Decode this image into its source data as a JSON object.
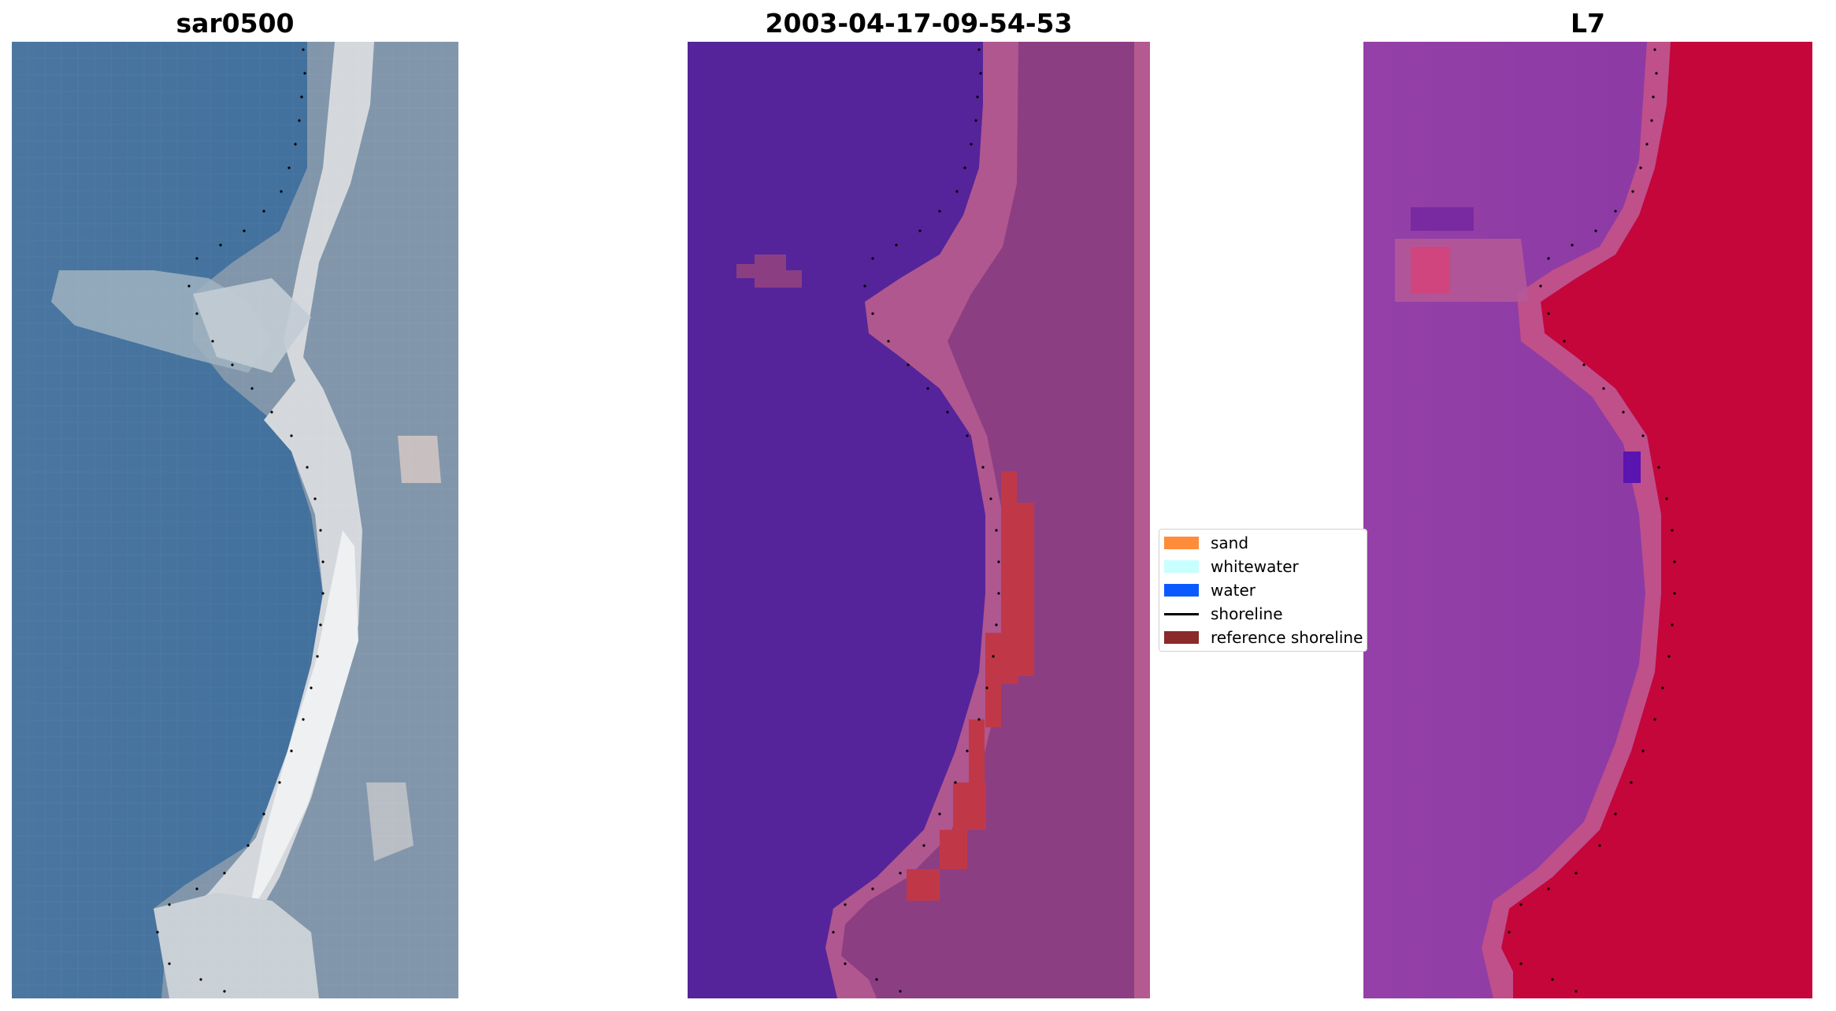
{
  "titles": {
    "left": "sar0500",
    "center": "2003-04-17-09-54-53",
    "right": "L7"
  },
  "legend": {
    "items": [
      {
        "label": "sand",
        "color": "#ff8c3a",
        "kind": "patch"
      },
      {
        "label": "whitewater",
        "color": "#c8ffff",
        "kind": "patch"
      },
      {
        "label": "water",
        "color": "#0a5aff",
        "kind": "patch"
      },
      {
        "label": "shoreline",
        "color": "#000000",
        "kind": "line"
      },
      {
        "label": "reference shoreline",
        "color": "#8a2a2a",
        "kind": "patch"
      }
    ]
  },
  "colors": {
    "rgb_water": "#3f6f9f",
    "rgb_sand": "#d8dde2",
    "class_water": "#55249a",
    "class_land": "#9a4a8a",
    "class_reference": "#c03848",
    "mndwi_water": "#8a36a2",
    "mndwi_land": "#c4063a"
  }
}
